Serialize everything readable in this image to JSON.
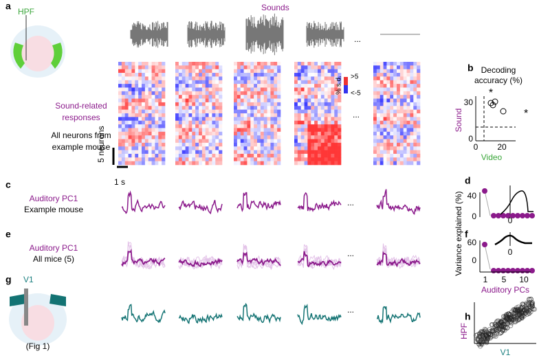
{
  "panels": {
    "a": {
      "label": "a",
      "region": "HPF",
      "sounds_title": "Sounds",
      "ellipsis": "...",
      "response_title": [
        "Sound-related",
        "responses"
      ],
      "population": [
        "All neurons from",
        "example mouse"
      ],
      "scale_y": "5 neurons",
      "scale_x": "1 s",
      "colorbar": {
        "title": "% s.d.",
        "max": ">5",
        "min": "<-5"
      }
    },
    "b": {
      "label": "b",
      "title": [
        "Decoding",
        "accuracy (%)"
      ],
      "y_label": "Sound",
      "x_label": "Video",
      "yticks": [
        30,
        0
      ],
      "xticks": [
        0,
        20
      ],
      "marks": [
        "*",
        "*"
      ]
    },
    "c": {
      "label": "c",
      "title": "Auditory PC1",
      "subtitle": "Example mouse"
    },
    "d": {
      "label": "d",
      "yticks": [
        40,
        0
      ],
      "inset_tick": 0
    },
    "e": {
      "label": "e",
      "title": "Auditory PC1",
      "subtitle": "All mice (5)"
    },
    "f": {
      "label": "f",
      "yticks": [
        60,
        0
      ],
      "inset_tick": 0,
      "xticks": [
        1,
        5,
        10
      ],
      "x_label": "Auditory PCs",
      "y_label": "Variance explained (%)"
    },
    "g": {
      "label": "g",
      "region": "V1",
      "note": "(Fig 1)"
    },
    "h": {
      "label": "h",
      "y_label": "HPF",
      "x_label": "V1"
    }
  }
}
